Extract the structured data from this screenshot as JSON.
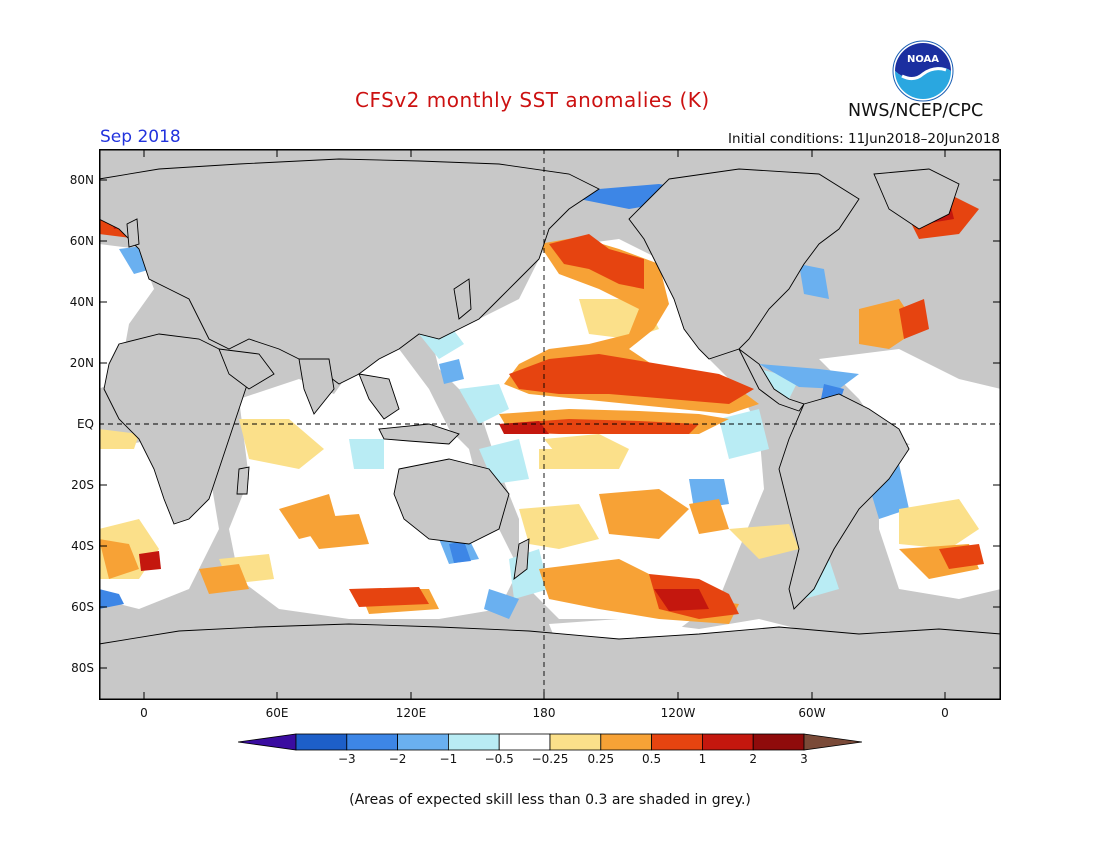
{
  "title": "CFSv2 monthly SST anomalies (K)",
  "period": "Sep 2018",
  "agency": "NWS/NCEP/CPC",
  "initial_conditions": "Initial conditions: 11Jun2018–20Jun2018",
  "logo_text": "NOAA",
  "footnote": "(Areas of expected skill less than 0.3 are shaded in grey.)",
  "lat_labels": [
    "80N",
    "60N",
    "40N",
    "20N",
    "EQ",
    "20S",
    "40S",
    "60S",
    "80S"
  ],
  "lon_labels": [
    "0",
    "60E",
    "120E",
    "180",
    "120W",
    "60W",
    "0"
  ],
  "colorbar": {
    "labels": [
      "−3",
      "−2",
      "−1",
      "−0.5",
      "−0.25",
      "0.25",
      "0.5",
      "1",
      "2",
      "3"
    ],
    "colors": [
      "#3a0ca0",
      "#1d5fc8",
      "#3d86e6",
      "#6ab0f0",
      "#b9ecf4",
      "#ffffff",
      "#fbe08a",
      "#f7a236",
      "#e64410",
      "#c4170e",
      "#8f0b0b",
      "#7a4a38"
    ]
  },
  "colors": {
    "land": "#c8c8c8",
    "title": "#cc1111",
    "period": "#2233dd"
  }
}
